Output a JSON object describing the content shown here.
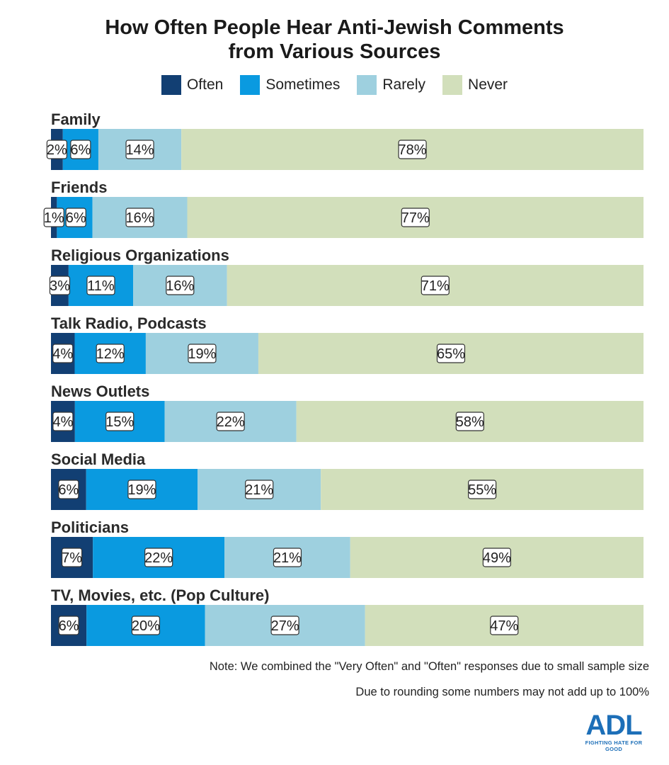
{
  "chart_data": {
    "type": "bar",
    "orientation": "horizontal",
    "stacked": true,
    "title_line1": "How Often People Hear Anti-Jewish Comments",
    "title_line2": "from Various Sources",
    "categories": [
      "Family",
      "Friends",
      "Religious Organizations",
      "Talk Radio, Podcasts",
      "News Outlets",
      "Social Media",
      "Politicians",
      "TV, Movies, etc. (Pop Culture)"
    ],
    "series": [
      {
        "name": "Often",
        "color": "#123f73",
        "values": [
          2,
          1,
          3,
          4,
          4,
          6,
          7,
          6
        ]
      },
      {
        "name": "Sometimes",
        "color": "#0a9ae0",
        "values": [
          6,
          6,
          11,
          12,
          15,
          19,
          22,
          20
        ]
      },
      {
        "name": "Rarely",
        "color": "#9ed0df",
        "values": [
          14,
          16,
          16,
          19,
          22,
          21,
          21,
          27
        ]
      },
      {
        "name": "Never",
        "color": "#d2dfbb",
        "values": [
          78,
          77,
          71,
          65,
          58,
          55,
          49,
          47
        ]
      }
    ],
    "unit": "%",
    "legend_position": "top",
    "grid": false
  },
  "notes": {
    "note1": "Note: We combined the \"Very Often\" and \"Often\" responses due to small sample size",
    "note2": "Due to rounding some numbers may not add up to 100%"
  },
  "logo": {
    "mark": "ADL",
    "tagline": "FIGHTING HATE FOR GOOD"
  }
}
